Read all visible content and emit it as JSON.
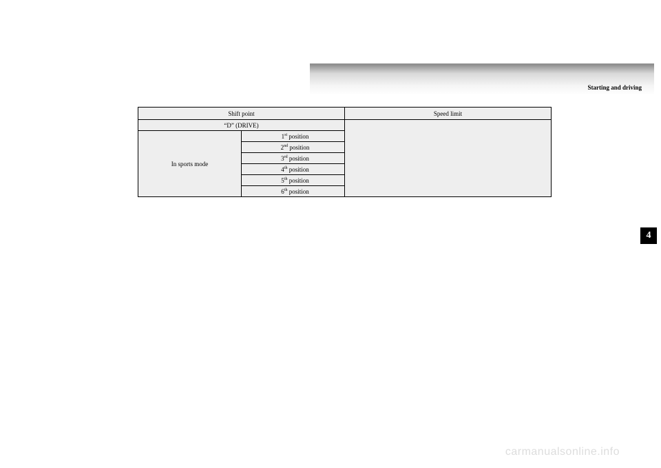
{
  "header": {
    "section": "Starting and driving"
  },
  "table": {
    "headers": {
      "shift": "Shift point",
      "speed": "Speed limit"
    },
    "drive_label": "“D” (DRIVE)",
    "sports_label": "In sports mode",
    "positions": [
      {
        "ord": "1",
        "suffix": "st",
        "word": " position"
      },
      {
        "ord": "2",
        "suffix": "nd",
        "word": " position"
      },
      {
        "ord": "3",
        "suffix": "rd",
        "word": " position"
      },
      {
        "ord": "4",
        "suffix": "th",
        "word": " position"
      },
      {
        "ord": "5",
        "suffix": "th",
        "word": " position"
      },
      {
        "ord": "6",
        "suffix": "th",
        "word": " position"
      }
    ]
  },
  "tab": "4",
  "watermark": "carmanualsonline.info"
}
